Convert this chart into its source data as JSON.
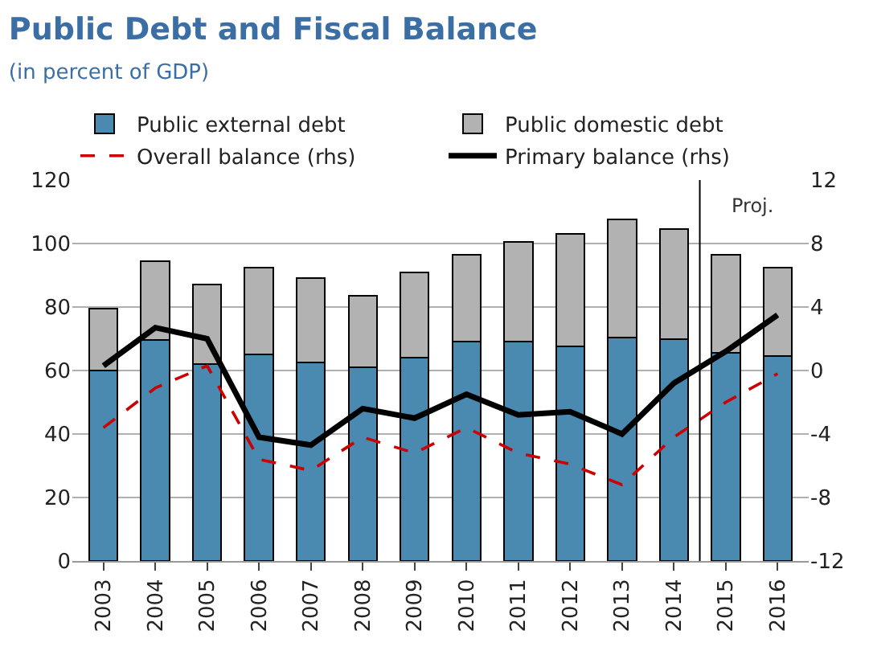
{
  "chart_data": {
    "type": "bar",
    "title": "Public Debt and Fiscal Balance",
    "subtitle": "(in percent of GDP)",
    "categories": [
      "2003",
      "2004",
      "2005",
      "2006",
      "2007",
      "2008",
      "2009",
      "2010",
      "2011",
      "2012",
      "2013",
      "2014",
      "2015",
      "2016"
    ],
    "stacked": true,
    "series": [
      {
        "name": "Public external debt",
        "color": "#4a8ab0",
        "values": [
          60,
          69.5,
          62,
          65,
          62.5,
          61,
          64,
          69,
          69,
          67.5,
          70.5,
          70,
          65.5,
          64.5
        ]
      },
      {
        "name": "Public domestic debt",
        "color": "#b2b2b2",
        "values": [
          19.5,
          25,
          25,
          27.5,
          26.5,
          22.5,
          27,
          27.5,
          31.5,
          35.5,
          37,
          34.5,
          31,
          28
        ]
      },
      {
        "name": "Overall balance (rhs)",
        "type": "line",
        "axis": "y2",
        "color": "#cc0000",
        "line_style": "dashed",
        "values": [
          -3.6,
          -1.1,
          0.3,
          -5.6,
          -6.3,
          -4.2,
          -5.2,
          -3.6,
          -5.2,
          -5.9,
          -7.2,
          -4.2,
          -2,
          -0.2
        ]
      },
      {
        "name": "Primary balance (rhs)",
        "type": "line",
        "axis": "y2",
        "color": "#000000",
        "line_style": "solid",
        "values": [
          0.3,
          2.7,
          2,
          -4.2,
          -4.7,
          -2.4,
          -3,
          -1.5,
          -2.8,
          -2.6,
          -4,
          -0.8,
          1.2,
          3.5
        ]
      }
    ],
    "ylim": [
      0,
      120
    ],
    "yticks": [
      0,
      20,
      40,
      60,
      80,
      100,
      120
    ],
    "y2lim": [
      -12,
      12
    ],
    "y2ticks": [
      -12,
      -8,
      -4,
      0,
      4,
      8,
      12
    ],
    "ref_lines": [
      {
        "axis": "x",
        "value": "2015",
        "label": "Proj.",
        "color": "#000000"
      }
    ],
    "grid": "y",
    "legend": "top"
  }
}
